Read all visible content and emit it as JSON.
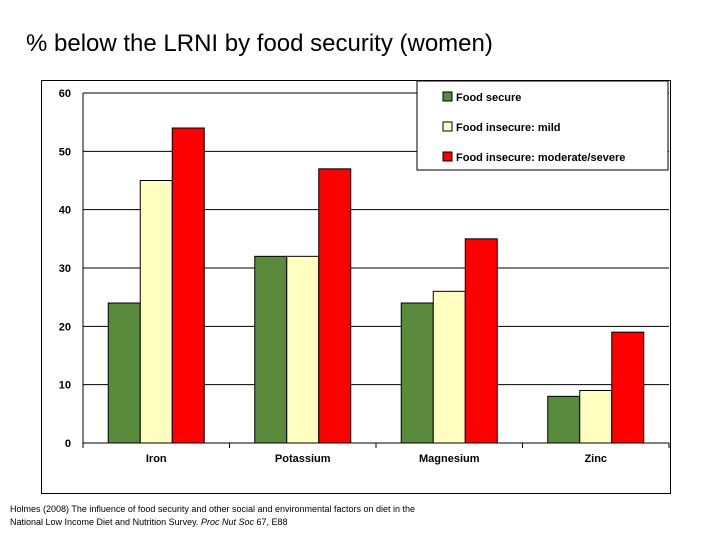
{
  "title": "% below the LRNI by food security (women)",
  "caption": {
    "line1": "Holmes (2008) The influence of food security and other social and environmental factors on diet in the",
    "line2_prefix": "National Low Income Diet and Nutrition Survey. ",
    "line2_journal": "Proc Nut Soc",
    "line2_suffix": " 67, E88"
  },
  "colors": {
    "food_secure": "#5a8a3c",
    "mild": "#ffffc0",
    "moderate_severe": "#ff0000",
    "grid": "#000000"
  },
  "chart_data": {
    "type": "bar",
    "categories": [
      "Iron",
      "Potassium",
      "Magnesium",
      "Zinc"
    ],
    "series": [
      {
        "name": "Food secure",
        "values": [
          24,
          32,
          24,
          8
        ],
        "color": "#5a8a3c"
      },
      {
        "name": "Food insecure: mild",
        "values": [
          45,
          32,
          26,
          9
        ],
        "color": "#ffffc0"
      },
      {
        "name": "Food insecure: moderate/severe",
        "values": [
          54,
          47,
          35,
          19
        ],
        "color": "#ff0000"
      }
    ],
    "yticks": [
      "0",
      "10",
      "20",
      "30",
      "40",
      "50",
      "60"
    ],
    "ylim": [
      0,
      60
    ],
    "grid": true,
    "legend": "top-right",
    "xlabel": "",
    "ylabel": ""
  }
}
